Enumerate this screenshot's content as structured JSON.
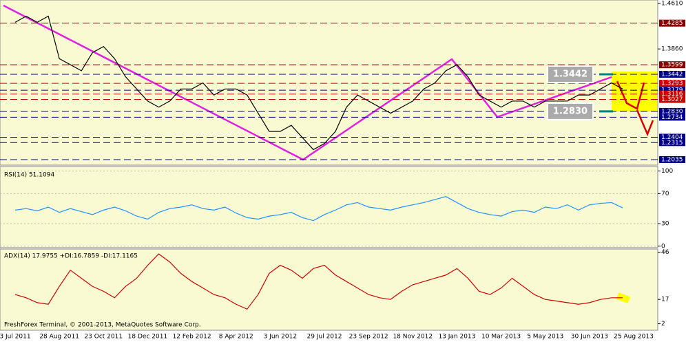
{
  "chart_data": [
    {
      "type": "line",
      "series": [
        {
          "name": "EURUSD",
          "color": "#000000",
          "values": [
            1.43,
            1.44,
            1.43,
            1.44,
            1.37,
            1.36,
            1.35,
            1.38,
            1.39,
            1.37,
            1.34,
            1.32,
            1.3,
            1.29,
            1.3,
            1.32,
            1.32,
            1.33,
            1.31,
            1.32,
            1.32,
            1.31,
            1.28,
            1.25,
            1.25,
            1.26,
            1.24,
            1.22,
            1.23,
            1.25,
            1.29,
            1.31,
            1.3,
            1.29,
            1.28,
            1.29,
            1.3,
            1.32,
            1.33,
            1.35,
            1.36,
            1.34,
            1.31,
            1.3,
            1.29,
            1.3,
            1.3,
            1.29,
            1.3,
            1.3,
            1.3,
            1.31,
            1.31,
            1.32,
            1.33,
            1.32,
            null
          ]
        }
      ],
      "ylim": [
        1.1944,
        1.4667
      ],
      "yticks": [
        {
          "value": 1.461,
          "label": "1.4610"
        },
        {
          "value": 1.386,
          "label": "1.3860"
        }
      ],
      "levels": [
        {
          "value": 1.4285,
          "label": "1.4285",
          "color": "#8b0000"
        },
        {
          "value": 1.3599,
          "label": "1.3599",
          "color": "#8b0000"
        },
        {
          "value": 1.3442,
          "label": "1.3442",
          "color": "#00008b"
        },
        {
          "value": 1.3293,
          "label": "1.3293",
          "color": "#cc0000"
        },
        {
          "value": 1.3179,
          "label": "1.3179",
          "color": "#00008b"
        },
        {
          "value": 1.3116,
          "label": "1.3116",
          "color": "#cc0000"
        },
        {
          "value": 1.3027,
          "label": "1.3027",
          "color": "#cc0000"
        },
        {
          "value": 1.283,
          "label": "1.2830",
          "color": "#00008b"
        },
        {
          "value": 1.2734,
          "label": "1.2734",
          "color": "#00008b"
        },
        {
          "value": 1.2404,
          "label": "1.2404",
          "color": "#00008b"
        },
        {
          "value": 1.2315,
          "label": "1.2315",
          "color": "#00008b"
        },
        {
          "value": 1.2035,
          "label": "1.2035",
          "color": "#00008b"
        }
      ],
      "annotations": [
        {
          "value": 1.3442,
          "label": "1.3442"
        },
        {
          "value": 1.283,
          "label": "1.2830"
        }
      ]
    },
    {
      "type": "line",
      "title": "RSI(14) 51.1094",
      "series": [
        {
          "name": "RSI(14)",
          "color": "#1e90ff",
          "values": [
            48,
            50,
            47,
            52,
            45,
            50,
            46,
            42,
            48,
            52,
            47,
            40,
            36,
            45,
            50,
            52,
            55,
            50,
            48,
            52,
            44,
            38,
            36,
            40,
            42,
            45,
            38,
            34,
            42,
            48,
            55,
            58,
            52,
            50,
            48,
            52,
            55,
            58,
            62,
            66,
            58,
            50,
            45,
            42,
            40,
            46,
            48,
            45,
            52,
            50,
            55,
            48,
            55,
            57,
            58,
            51,
            null
          ]
        }
      ],
      "ylim": [
        -2,
        106
      ],
      "yticks": [
        100,
        70,
        30,
        0
      ]
    },
    {
      "type": "line",
      "title": "ADX(14) 17.9755 +DI:16.7859 -DI:17.1165",
      "series": [
        {
          "name": "ADX(14)",
          "color": "#cc0000",
          "values": [
            20,
            18,
            15,
            14,
            25,
            35,
            30,
            25,
            22,
            18,
            25,
            30,
            38,
            45,
            40,
            33,
            28,
            24,
            20,
            18,
            14,
            11,
            20,
            33,
            38,
            35,
            30,
            36,
            38,
            32,
            28,
            24,
            20,
            18,
            17,
            22,
            26,
            28,
            30,
            32,
            36,
            30,
            22,
            20,
            24,
            30,
            25,
            20,
            17,
            16,
            15,
            14,
            15,
            17,
            18,
            18,
            null
          ]
        }
      ],
      "ylim": [
        -2,
        48
      ],
      "yticks": [
        46,
        17,
        2
      ],
      "categories": [
        "3 Jul 2011",
        null,
        null,
        null,
        "28 Aug 2011",
        null,
        null,
        null,
        "23 Oct 2011",
        null,
        null,
        null,
        "18 Dec 2011",
        null,
        null,
        null,
        "12 Feb 2012",
        null,
        null,
        null,
        "8 Apr 2012",
        null,
        null,
        null,
        "3 Jun 2012",
        null,
        null,
        null,
        "29 Jul 2012",
        null,
        null,
        null,
        "23 Sep 2012",
        null,
        null,
        null,
        "18 Nov 2012",
        null,
        null,
        null,
        "13 Jan 2013",
        null,
        null,
        null,
        "10 Mar 2013",
        null,
        null,
        null,
        "5 May 2013",
        null,
        null,
        null,
        "30 Jun 2013",
        null,
        null,
        null,
        "25 Aug 2013"
      ],
      "footer": "FreshForex Terminal, © 2001-2013, MetaQuotes Software Corp."
    }
  ]
}
